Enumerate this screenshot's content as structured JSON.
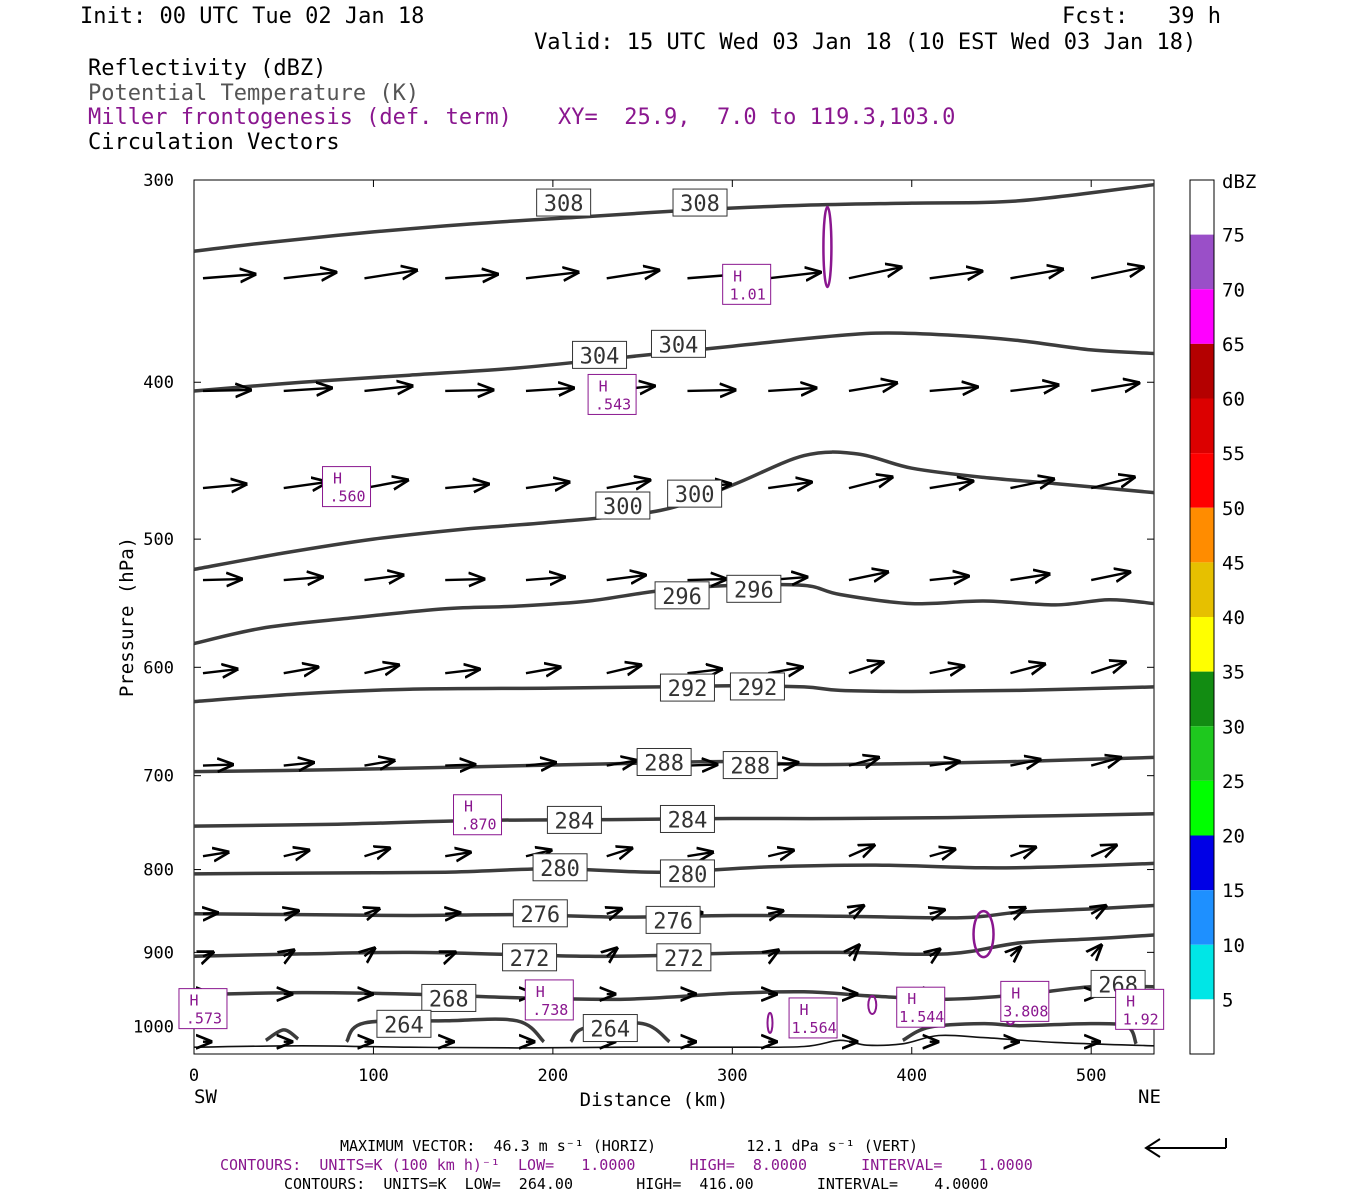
{
  "header": {
    "init": "Init: 00 UTC Tue 02 Jan 18",
    "fcst": "Fcst:   39 h",
    "valid": "Valid: 15 UTC Wed 03 Jan 18 (10 EST Wed 03 Jan 18)"
  },
  "legend_lines": {
    "reflectivity": "Reflectivity (dBZ)",
    "theta": "Potential Temperature (K)",
    "frontogenesis": "Miller frontogenesis (def. term)",
    "xy": "XY=  25.9,  7.0 to 119.3,103.0",
    "vectors": "Circulation Vectors"
  },
  "footer": {
    "max_vector": "MAXIMUM VECTOR:  46.3 m s⁻¹ (HORIZ)          12.1 dPa s⁻¹ (VERT)",
    "contours_purple": "CONTOURS:  UNITS=K (100 km h)⁻¹  LOW=   1.0000      HIGH=  8.0000      INTERVAL=    1.0000",
    "contours_black": "CONTOURS:  UNITS=K  LOW=  264.00       HIGH=  416.00       INTERVAL=    4.0000",
    "sw": "SW",
    "ne": "NE"
  },
  "colors": {
    "theta": "#3c3c3c",
    "frontogenesis": "#8a178f",
    "vectors": "#000000"
  },
  "chart_data": {
    "type": "cross-section",
    "xlabel": "Distance (km)",
    "ylabel": "Pressure (hPa)",
    "xlim": [
      0,
      535
    ],
    "ylim": [
      1040,
      300
    ],
    "y_scale": "log-pressure",
    "x_ticks": [
      0,
      100,
      200,
      300,
      400,
      500
    ],
    "y_ticks": [
      300,
      400,
      500,
      600,
      700,
      800,
      900,
      1000
    ],
    "colorbar": {
      "title": "dBZ",
      "labels": [
        "5",
        "10",
        "15",
        "20",
        "25",
        "30",
        "35",
        "40",
        "45",
        "50",
        "55",
        "60",
        "65",
        "70",
        "75"
      ],
      "colors": [
        "#ffffff",
        "#00e6e6",
        "#1e90ff",
        "#0000e6",
        "#00ff00",
        "#1ec81e",
        "#128c12",
        "#ffff00",
        "#e6c000",
        "#ff8c00",
        "#ff0000",
        "#dc0000",
        "#b40000",
        "#ff00ff",
        "#9a4fc8",
        "#ffffff"
      ]
    },
    "theta_contours": [
      {
        "value": 308,
        "label": "308",
        "points": [
          [
            0,
            332
          ],
          [
            40,
            328
          ],
          [
            100,
            323
          ],
          [
            160,
            319
          ],
          [
            220,
            316
          ],
          [
            280,
            313
          ],
          [
            340,
            311
          ],
          [
            400,
            310
          ],
          [
            460,
            309
          ],
          [
            535,
            302
          ]
        ],
        "labels_at": [
          [
            206,
            310
          ],
          [
            282,
            310
          ]
        ]
      },
      {
        "value": 304,
        "label": "304",
        "points": [
          [
            0,
            405
          ],
          [
            60,
            400
          ],
          [
            120,
            396
          ],
          [
            180,
            392
          ],
          [
            240,
            386
          ],
          [
            300,
            380
          ],
          [
            340,
            376
          ],
          [
            380,
            373
          ],
          [
            420,
            374
          ],
          [
            460,
            377
          ],
          [
            500,
            382
          ],
          [
            535,
            384
          ]
        ],
        "labels_at": [
          [
            226,
            385
          ],
          [
            270,
            379
          ]
        ]
      },
      {
        "value": 300,
        "label": "300",
        "points": [
          [
            0,
            522
          ],
          [
            50,
            510
          ],
          [
            100,
            500
          ],
          [
            150,
            493
          ],
          [
            200,
            488
          ],
          [
            260,
            480
          ],
          [
            300,
            463
          ],
          [
            340,
            444
          ],
          [
            370,
            443
          ],
          [
            400,
            452
          ],
          [
            440,
            458
          ],
          [
            480,
            462
          ],
          [
            535,
            468
          ]
        ],
        "labels_at": [
          [
            239,
            477
          ],
          [
            279,
            469
          ]
        ]
      },
      {
        "value": 296,
        "label": "296",
        "points": [
          [
            0,
            580
          ],
          [
            40,
            567
          ],
          [
            90,
            559
          ],
          [
            140,
            552
          ],
          [
            180,
            550
          ],
          [
            220,
            546
          ],
          [
            260,
            538
          ],
          [
            300,
            534
          ],
          [
            340,
            534
          ],
          [
            360,
            541
          ],
          [
            400,
            548
          ],
          [
            440,
            546
          ],
          [
            480,
            549
          ],
          [
            510,
            545
          ],
          [
            535,
            548
          ]
        ],
        "labels_at": [
          [
            272,
            542
          ],
          [
            312,
            537
          ]
        ]
      },
      {
        "value": 292,
        "label": "292",
        "points": [
          [
            0,
            630
          ],
          [
            60,
            623
          ],
          [
            120,
            619
          ],
          [
            200,
            618
          ],
          [
            260,
            617
          ],
          [
            300,
            616
          ],
          [
            340,
            617
          ],
          [
            360,
            620
          ],
          [
            400,
            621
          ],
          [
            460,
            620
          ],
          [
            535,
            617
          ]
        ],
        "labels_at": [
          [
            275,
            618
          ],
          [
            314,
            617
          ]
        ]
      },
      {
        "value": 288,
        "label": "288",
        "points": [
          [
            0,
            696
          ],
          [
            80,
            694
          ],
          [
            160,
            691
          ],
          [
            240,
            688
          ],
          [
            300,
            686
          ],
          [
            340,
            689
          ],
          [
            400,
            688
          ],
          [
            460,
            686
          ],
          [
            535,
            682
          ]
        ],
        "labels_at": [
          [
            262,
            687
          ],
          [
            310,
            690
          ]
        ]
      },
      {
        "value": 284,
        "label": "284",
        "points": [
          [
            0,
            752
          ],
          [
            80,
            750
          ],
          [
            160,
            746
          ],
          [
            240,
            745
          ],
          [
            300,
            744
          ],
          [
            360,
            744
          ],
          [
            420,
            743
          ],
          [
            480,
            741
          ],
          [
            535,
            739
          ]
        ],
        "labels_at": [
          [
            212,
            746
          ],
          [
            275,
            745
          ]
        ]
      },
      {
        "value": 280,
        "label": "280",
        "points": [
          [
            0,
            805
          ],
          [
            60,
            804
          ],
          [
            140,
            803
          ],
          [
            200,
            799
          ],
          [
            260,
            803
          ],
          [
            320,
            797
          ],
          [
            380,
            795
          ],
          [
            440,
            798
          ],
          [
            480,
            797
          ],
          [
            535,
            793
          ]
        ],
        "labels_at": [
          [
            204,
            798
          ],
          [
            275,
            805
          ]
        ]
      },
      {
        "value": 276,
        "label": "276",
        "points": [
          [
            0,
            852
          ],
          [
            60,
            853
          ],
          [
            120,
            854
          ],
          [
            180,
            853
          ],
          [
            240,
            856
          ],
          [
            300,
            854
          ],
          [
            360,
            855
          ],
          [
            420,
            857
          ],
          [
            440,
            855
          ],
          [
            460,
            850
          ],
          [
            500,
            846
          ],
          [
            535,
            842
          ]
        ],
        "labels_at": [
          [
            193,
            852
          ],
          [
            267,
            860
          ]
        ]
      },
      {
        "value": 272,
        "label": "272",
        "points": [
          [
            0,
            905
          ],
          [
            60,
            902
          ],
          [
            120,
            900
          ],
          [
            180,
            903
          ],
          [
            220,
            905
          ],
          [
            260,
            904
          ],
          [
            300,
            901
          ],
          [
            360,
            900
          ],
          [
            420,
            902
          ],
          [
            460,
            888
          ],
          [
            500,
            883
          ],
          [
            535,
            878
          ]
        ],
        "labels_at": [
          [
            187,
            907
          ],
          [
            273,
            907
          ]
        ]
      },
      {
        "value": 268,
        "label": "268",
        "points": [
          [
            0,
            956
          ],
          [
            60,
            953
          ],
          [
            120,
            955
          ],
          [
            180,
            960
          ],
          [
            240,
            962
          ],
          [
            300,
            954
          ],
          [
            340,
            952
          ],
          [
            380,
            958
          ],
          [
            420,
            962
          ],
          [
            460,
            956
          ],
          [
            500,
            945
          ],
          [
            535,
            945
          ]
        ],
        "labels_at": [
          [
            142,
            961
          ],
          [
            515,
            942
          ]
        ]
      },
      {
        "value": 264,
        "label": "264",
        "points": [
          [
            85,
            1022
          ],
          [
            95,
            995
          ],
          [
            140,
            992
          ],
          [
            180,
            992
          ],
          [
            195,
            1022
          ]
        ],
        "labels_at": [
          [
            117,
            997
          ],
          [
            232,
            1003
          ]
        ]
      },
      {
        "value": 264,
        "label": "",
        "points": [
          [
            210,
            1022
          ],
          [
            218,
            1002
          ],
          [
            250,
            996
          ],
          [
            265,
            1022
          ]
        ],
        "labels_at": []
      },
      {
        "value": 264,
        "label": "",
        "points": [
          [
            40,
            1020
          ],
          [
            50,
            1005
          ],
          [
            58,
            1018
          ]
        ],
        "labels_at": []
      },
      {
        "value": 264,
        "label": "",
        "points": [
          [
            395,
            1020
          ],
          [
            410,
            1001
          ],
          [
            440,
            996
          ],
          [
            460,
            999
          ],
          [
            500,
            996
          ],
          [
            520,
            1000
          ],
          [
            525,
            1025
          ]
        ],
        "labels_at": []
      }
    ],
    "terrain": [
      [
        0,
        1030
      ],
      [
        60,
        1028
      ],
      [
        120,
        1030
      ],
      [
        180,
        1031
      ],
      [
        240,
        1030
      ],
      [
        300,
        1030
      ],
      [
        340,
        1029
      ],
      [
        360,
        1020
      ],
      [
        375,
        1027
      ],
      [
        395,
        1025
      ],
      [
        415,
        1013
      ],
      [
        440,
        1016
      ],
      [
        480,
        1023
      ],
      [
        535,
        1028
      ]
    ],
    "frontogenesis_maxima": [
      {
        "label": ".573",
        "x": 5,
        "p": 975
      },
      {
        "label": ".560",
        "x": 85,
        "p": 464
      },
      {
        "label": ".870",
        "x": 158,
        "p": 740
      },
      {
        "label": ".738",
        "x": 198,
        "p": 963
      },
      {
        "label": ".543",
        "x": 233,
        "p": 407
      },
      {
        "label": "1.01",
        "x": 308,
        "p": 348
      },
      {
        "label": "1.564",
        "x": 345,
        "p": 988
      },
      {
        "label": "1.544",
        "x": 405,
        "p": 973
      },
      {
        "label": "3.808",
        "x": 463,
        "p": 965
      },
      {
        "label": "1.92",
        "x": 527,
        "p": 976
      }
    ],
    "vector_rows_hpa": [
      345,
      405,
      465,
      530,
      605,
      690,
      785,
      852,
      905,
      955,
      1022
    ],
    "vector_cols_km": [
      5,
      50,
      95,
      140,
      185,
      230,
      275,
      320,
      365,
      410,
      455,
      500
    ]
  }
}
